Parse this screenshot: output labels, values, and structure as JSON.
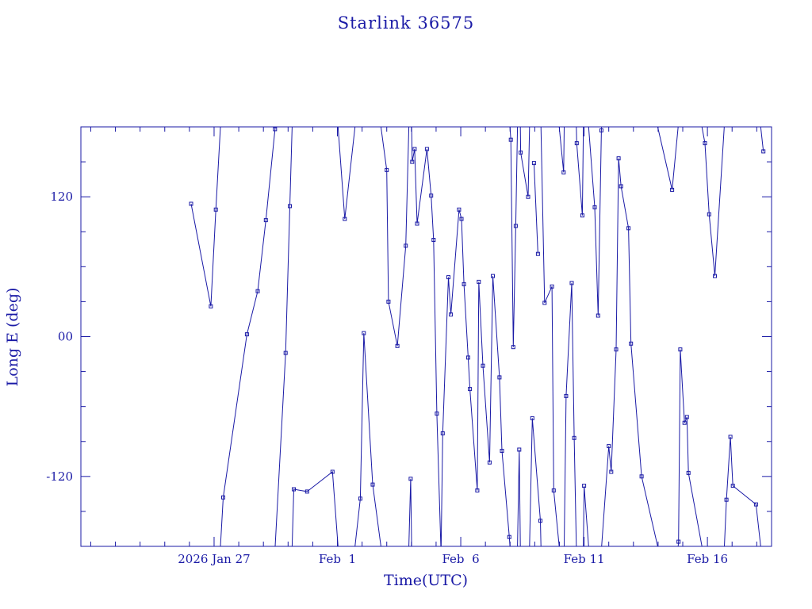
{
  "chart_data": {
    "type": "line",
    "title": "Starlink 36575",
    "xlabel": "Time(UTC)",
    "ylabel": "Long E (deg)",
    "x_unit": "days",
    "xlim": [
      -5.4,
      22.6
    ],
    "ylim": [
      -180,
      180
    ],
    "wrap": [
      -180,
      180
    ],
    "grid": false,
    "legend": "none",
    "color": "#1a1aa6",
    "x_ticks": [
      {
        "x": 0,
        "label": "2026 Jan 27"
      },
      {
        "x": 5,
        "label": "Feb  1"
      },
      {
        "x": 10,
        "label": "Feb  6"
      },
      {
        "x": 15,
        "label": "Feb 11"
      },
      {
        "x": 20,
        "label": "Feb 16"
      }
    ],
    "x_minor_step": 1,
    "y_ticks": [
      {
        "y": -120,
        "label": "-120"
      },
      {
        "y": 0,
        "label": "00"
      },
      {
        "y": 120,
        "label": "120"
      }
    ],
    "y_minor_step": 30,
    "points": [
      [
        -0.93,
        114
      ],
      [
        -0.13,
        26
      ],
      [
        0.07,
        109
      ],
      [
        0.37,
        -138
      ],
      [
        1.33,
        2
      ],
      [
        1.77,
        39
      ],
      [
        2.1,
        100
      ],
      [
        2.47,
        178
      ],
      [
        2.9,
        -14
      ],
      [
        3.07,
        112
      ],
      [
        3.23,
        -131
      ],
      [
        3.77,
        -133
      ],
      [
        4.8,
        -116
      ],
      [
        5.3,
        101
      ],
      [
        5.93,
        -139
      ],
      [
        6.07,
        3
      ],
      [
        6.43,
        -127
      ],
      [
        7.0,
        143
      ],
      [
        7.07,
        30
      ],
      [
        7.43,
        -8
      ],
      [
        7.77,
        78
      ],
      [
        7.97,
        -122
      ],
      [
        8.03,
        150
      ],
      [
        8.13,
        161
      ],
      [
        8.23,
        97
      ],
      [
        8.63,
        161
      ],
      [
        8.8,
        121
      ],
      [
        8.9,
        83
      ],
      [
        9.03,
        -66
      ],
      [
        9.2,
        -186
      ],
      [
        9.27,
        -83
      ],
      [
        9.5,
        51
      ],
      [
        9.6,
        19
      ],
      [
        9.93,
        109
      ],
      [
        10.03,
        101
      ],
      [
        10.13,
        45
      ],
      [
        10.3,
        -18
      ],
      [
        10.37,
        -45
      ],
      [
        10.67,
        -132
      ],
      [
        10.73,
        47
      ],
      [
        10.9,
        -25
      ],
      [
        11.17,
        -108
      ],
      [
        11.3,
        52
      ],
      [
        11.57,
        -35
      ],
      [
        11.67,
        -98
      ],
      [
        11.97,
        -172
      ],
      [
        12.03,
        169
      ],
      [
        12.13,
        -9
      ],
      [
        12.23,
        95
      ],
      [
        12.37,
        -97
      ],
      [
        12.43,
        158
      ],
      [
        12.73,
        120
      ],
      [
        12.9,
        -70
      ],
      [
        13.23,
        -158
      ],
      [
        13.4,
        29
      ],
      [
        13.7,
        43
      ],
      [
        13.77,
        -132
      ],
      [
        14.17,
        141
      ],
      [
        14.27,
        -51
      ],
      [
        14.5,
        46
      ],
      [
        14.6,
        -87
      ],
      [
        14.7,
        166
      ],
      [
        14.93,
        104
      ],
      [
        15.0,
        -128
      ],
      [
        15.43,
        111
      ],
      [
        15.57,
        18
      ],
      [
        15.7,
        177
      ],
      [
        16.0,
        -94
      ],
      [
        16.1,
        -116
      ],
      [
        16.3,
        -11
      ],
      [
        16.4,
        153
      ],
      [
        16.5,
        129
      ],
      [
        16.8,
        93
      ],
      [
        16.9,
        -6
      ],
      [
        17.33,
        -120
      ],
      [
        18.57,
        126
      ],
      [
        18.83,
        -176
      ],
      [
        18.9,
        -11
      ],
      [
        19.07,
        -74
      ],
      [
        19.17,
        -69
      ],
      [
        19.23,
        -117
      ],
      [
        19.9,
        166
      ],
      [
        20.07,
        105
      ],
      [
        20.3,
        52
      ],
      [
        20.7,
        186
      ],
      [
        20.77,
        -140
      ],
      [
        20.93,
        -86
      ],
      [
        21.03,
        -128
      ],
      [
        21.97,
        -144
      ],
      [
        22.27,
        159
      ]
    ],
    "points_b": [
      [
        12.97,
        149
      ],
      [
        13.13,
        71
      ]
    ]
  }
}
